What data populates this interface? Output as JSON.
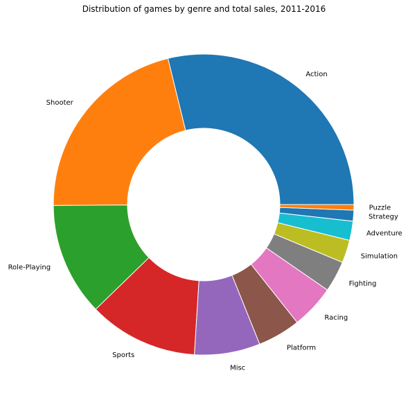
{
  "chart_data": {
    "type": "pie",
    "donut": true,
    "title": "Distribution of games by genre and total sales, 2011-2016",
    "start_angle_deg": 0,
    "direction": "counterclockwise",
    "slices": [
      {
        "label": "Action",
        "value": 29.4,
        "color": "#1f77b4"
      },
      {
        "label": "Shooter",
        "value": 21.7,
        "color": "#ff7f0e"
      },
      {
        "label": "Role-Playing",
        "value": 12.4,
        "color": "#2ca02c"
      },
      {
        "label": "Sports",
        "value": 12.0,
        "color": "#d62728"
      },
      {
        "label": "Misc",
        "value": 7.2,
        "color": "#9467bd"
      },
      {
        "label": "Platform",
        "value": 4.7,
        "color": "#8c564b"
      },
      {
        "label": "Racing",
        "value": 4.8,
        "color": "#e377c2"
      },
      {
        "label": "Fighting",
        "value": 3.4,
        "color": "#7f7f7f"
      },
      {
        "label": "Simulation",
        "value": 2.5,
        "color": "#bcbd22"
      },
      {
        "label": "Adventure",
        "value": 2.1,
        "color": "#17becf"
      },
      {
        "label": "Strategy",
        "value": 1.2,
        "color": "#1f77b4"
      },
      {
        "label": "Puzzle",
        "value": 0.6,
        "color": "#ff7f0e"
      }
    ]
  }
}
